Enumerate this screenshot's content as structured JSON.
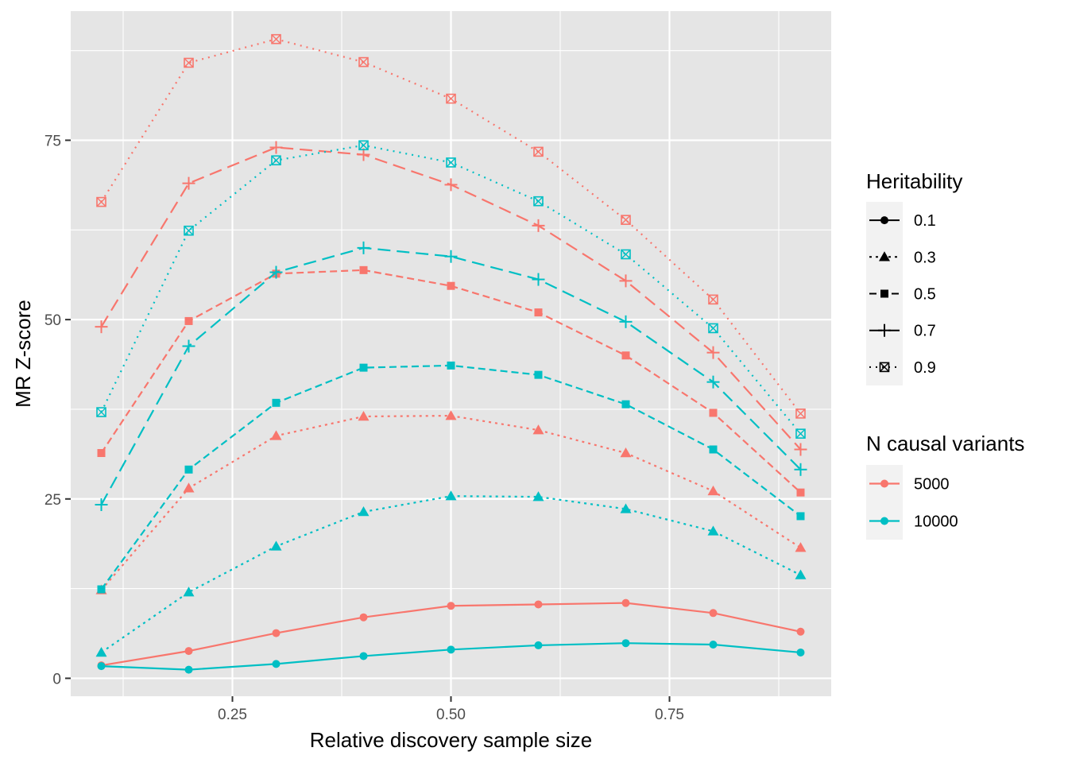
{
  "chart_data": {
    "type": "line",
    "xlabel": "Relative discovery sample size",
    "ylabel": "MR Z-score",
    "x": [
      0.1,
      0.2,
      0.3,
      0.4,
      0.5,
      0.6,
      0.7,
      0.8,
      0.9
    ],
    "xlim": [
      0.065,
      0.935
    ],
    "ylim": [
      -2.5,
      93
    ],
    "x_ticks": [
      0.25,
      0.5,
      0.75
    ],
    "x_tick_labels": [
      "0.25",
      "0.50",
      "0.75"
    ],
    "y_ticks": [
      0,
      25,
      50,
      75
    ],
    "y_tick_labels": [
      "0",
      "25",
      "50",
      "75"
    ],
    "grid": true,
    "background": "#e5e5e5",
    "legend_position": "right",
    "legends": {
      "heritability": {
        "title": "Heritability",
        "entries": [
          {
            "label": "0.1",
            "shape": "circle",
            "linetype": "solid"
          },
          {
            "label": "0.3",
            "shape": "triangle",
            "linetype": "dotted"
          },
          {
            "label": "0.5",
            "shape": "square",
            "linetype": "dashed"
          },
          {
            "label": "0.7",
            "shape": "plus",
            "linetype": "longdash"
          },
          {
            "label": "0.9",
            "shape": "boxcross",
            "linetype": "finedot"
          }
        ]
      },
      "n_causal": {
        "title": "N causal variants",
        "entries": [
          {
            "label": "5000",
            "color": "#F8766D"
          },
          {
            "label": "10000",
            "color": "#00BFC4"
          }
        ]
      }
    },
    "series": [
      {
        "heritability": "0.1",
        "n_causal": "5000",
        "color": "#F8766D",
        "values": [
          1.8,
          3.8,
          6.3,
          8.5,
          10.1,
          10.3,
          10.5,
          9.1,
          6.5
        ]
      },
      {
        "heritability": "0.1",
        "n_causal": "10000",
        "color": "#00BFC4",
        "values": [
          1.7,
          1.2,
          2.0,
          3.1,
          4.0,
          4.6,
          4.9,
          4.7,
          3.6
        ]
      },
      {
        "heritability": "0.3",
        "n_causal": "5000",
        "color": "#F8766D",
        "values": [
          12.3,
          26.5,
          33.8,
          36.5,
          36.6,
          34.6,
          31.4,
          26.1,
          18.2
        ]
      },
      {
        "heritability": "0.3",
        "n_causal": "10000",
        "color": "#00BFC4",
        "values": [
          3.6,
          12.0,
          18.4,
          23.2,
          25.4,
          25.3,
          23.6,
          20.5,
          14.4
        ]
      },
      {
        "heritability": "0.5",
        "n_causal": "5000",
        "color": "#F8766D",
        "values": [
          31.4,
          49.8,
          56.4,
          56.9,
          54.7,
          51.0,
          45.0,
          37.0,
          25.9
        ]
      },
      {
        "heritability": "0.5",
        "n_causal": "10000",
        "color": "#00BFC4",
        "values": [
          12.4,
          29.1,
          38.4,
          43.3,
          43.6,
          42.3,
          38.2,
          31.9,
          22.6
        ]
      },
      {
        "heritability": "0.7",
        "n_causal": "5000",
        "color": "#F8766D",
        "values": [
          49.0,
          69.0,
          74.0,
          73.0,
          68.8,
          63.1,
          55.4,
          45.4,
          31.9
        ]
      },
      {
        "heritability": "0.7",
        "n_causal": "10000",
        "color": "#00BFC4",
        "values": [
          24.2,
          46.3,
          56.6,
          60.0,
          58.8,
          55.6,
          49.7,
          41.3,
          29.1
        ]
      },
      {
        "heritability": "0.9",
        "n_causal": "5000",
        "color": "#F8766D",
        "values": [
          66.4,
          85.8,
          89.1,
          85.9,
          80.8,
          73.4,
          63.9,
          52.8,
          36.9
        ]
      },
      {
        "heritability": "0.9",
        "n_causal": "10000",
        "color": "#00BFC4",
        "values": [
          37.1,
          62.4,
          72.2,
          74.3,
          71.9,
          66.5,
          59.1,
          48.8,
          34.1
        ]
      }
    ]
  }
}
